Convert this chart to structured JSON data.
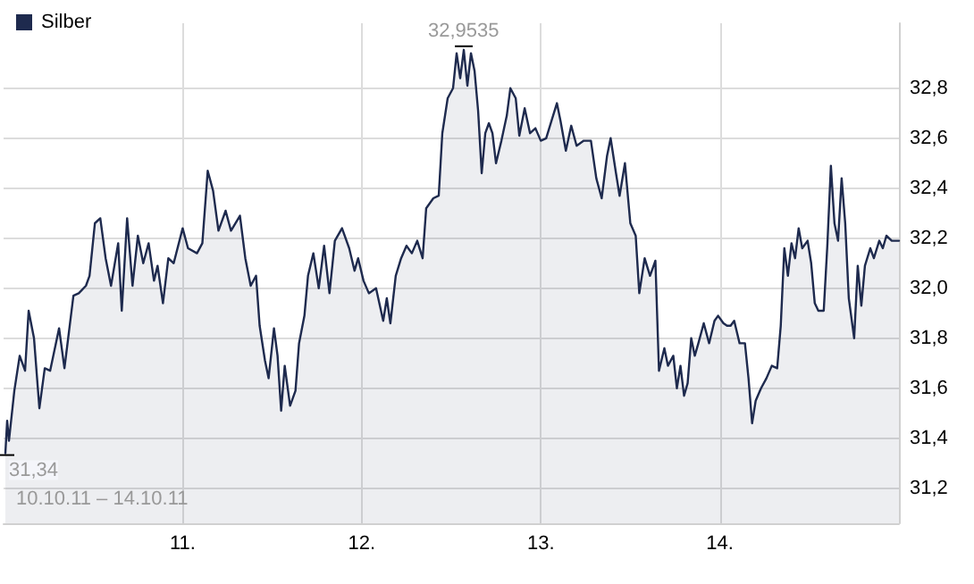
{
  "chart_data": {
    "type": "area",
    "legend": "top left",
    "grid": true,
    "marker": "none",
    "line_style": "solid",
    "xlim": [
      10,
      15
    ],
    "ylim": [
      31.06,
      33.06
    ],
    "xticks": [
      {
        "value": 11,
        "label": "11."
      },
      {
        "value": 12,
        "label": "12."
      },
      {
        "value": 13,
        "label": "13."
      },
      {
        "value": 14,
        "label": "14."
      }
    ],
    "yticks": [
      {
        "value": 31.2,
        "label": "31,2"
      },
      {
        "value": 31.4,
        "label": "31,4"
      },
      {
        "value": 31.6,
        "label": "31,6"
      },
      {
        "value": 31.8,
        "label": "31,8"
      },
      {
        "value": 32.0,
        "label": "32,0"
      },
      {
        "value": 32.2,
        "label": "32,2"
      },
      {
        "value": 32.4,
        "label": "32,4"
      },
      {
        "value": 32.6,
        "label": "32,6"
      },
      {
        "value": 32.8,
        "label": "32,8"
      }
    ],
    "annotations": [
      {
        "text": "32,9535",
        "x": 12.57,
        "y": 32.9535
      },
      {
        "text": "31,34",
        "x": 10.01,
        "y": 31.34
      },
      "10.10.11 – 14.10.11"
    ],
    "series": [
      {
        "name": "Silber",
        "color": "#1e2a4e",
        "x": [
          10.01,
          10.02,
          10.03,
          10.06,
          10.09,
          10.12,
          10.14,
          10.17,
          10.2,
          10.23,
          10.26,
          10.31,
          10.34,
          10.39,
          10.42,
          10.46,
          10.48,
          10.51,
          10.54,
          10.57,
          10.6,
          10.64,
          10.66,
          10.69,
          10.72,
          10.75,
          10.78,
          10.81,
          10.84,
          10.86,
          10.89,
          10.92,
          10.95,
          11.0,
          11.03,
          11.08,
          11.11,
          11.14,
          11.17,
          11.2,
          11.24,
          11.27,
          11.32,
          11.35,
          11.38,
          11.41,
          11.43,
          11.46,
          11.48,
          11.51,
          11.53,
          11.55,
          11.57,
          11.6,
          11.63,
          11.65,
          11.68,
          11.7,
          11.73,
          11.76,
          11.79,
          11.82,
          11.85,
          11.89,
          11.93,
          11.96,
          11.98,
          12.01,
          12.04,
          12.08,
          12.12,
          12.14,
          12.16,
          12.19,
          12.22,
          12.25,
          12.28,
          12.31,
          12.34,
          12.36,
          12.4,
          12.43,
          12.45,
          12.48,
          12.51,
          12.53,
          12.55,
          12.57,
          12.59,
          12.61,
          12.63,
          12.65,
          12.67,
          12.69,
          12.71,
          12.73,
          12.75,
          12.78,
          12.81,
          12.83,
          12.86,
          12.88,
          12.91,
          12.94,
          12.97,
          13.0,
          13.03,
          13.06,
          13.09,
          13.11,
          13.14,
          13.17,
          13.2,
          13.24,
          13.28,
          13.31,
          13.34,
          13.37,
          13.39,
          13.42,
          13.44,
          13.47,
          13.5,
          13.53,
          13.55,
          13.58,
          13.61,
          13.64,
          13.66,
          13.69,
          13.71,
          13.74,
          13.76,
          13.78,
          13.8,
          13.82,
          13.84,
          13.86,
          13.88,
          13.91,
          13.94,
          13.97,
          13.99,
          14.02,
          14.04,
          14.06,
          14.08,
          14.11,
          14.14,
          14.16,
          14.18,
          14.2,
          14.23,
          14.26,
          14.29,
          14.32,
          14.34,
          14.36,
          14.38,
          14.4,
          14.42,
          14.44,
          14.46,
          14.49,
          14.51,
          14.53,
          14.55,
          14.58,
          14.6,
          14.62,
          14.64,
          14.66,
          14.68,
          14.7,
          14.72,
          14.75,
          14.77,
          14.79,
          14.81,
          14.84,
          14.86,
          14.89,
          14.91,
          14.93,
          14.96,
          15.0
        ],
        "values": [
          31.34,
          31.47,
          31.39,
          31.59,
          31.73,
          31.67,
          31.91,
          31.8,
          31.52,
          31.68,
          31.67,
          31.84,
          31.68,
          31.97,
          31.98,
          32.01,
          32.05,
          32.26,
          32.28,
          32.12,
          32.01,
          32.18,
          31.91,
          32.28,
          32.01,
          32.21,
          32.1,
          32.18,
          32.03,
          32.09,
          31.94,
          32.12,
          32.1,
          32.24,
          32.16,
          32.14,
          32.18,
          32.47,
          32.39,
          32.23,
          32.31,
          32.23,
          32.29,
          32.12,
          32.01,
          32.05,
          31.85,
          31.71,
          31.64,
          31.84,
          31.73,
          31.51,
          31.69,
          31.53,
          31.59,
          31.78,
          31.89,
          32.05,
          32.14,
          32.0,
          32.17,
          31.98,
          32.19,
          32.24,
          32.16,
          32.07,
          32.12,
          32.03,
          31.98,
          32.0,
          31.87,
          31.96,
          31.86,
          32.05,
          32.12,
          32.17,
          32.14,
          32.19,
          32.12,
          32.32,
          32.36,
          32.37,
          32.62,
          32.76,
          32.8,
          32.94,
          32.84,
          32.9535,
          32.81,
          32.94,
          32.87,
          32.71,
          32.46,
          32.62,
          32.66,
          32.62,
          32.5,
          32.59,
          32.69,
          32.8,
          32.76,
          32.61,
          32.72,
          32.62,
          32.64,
          32.59,
          32.6,
          32.67,
          32.74,
          32.67,
          32.55,
          32.65,
          32.57,
          32.59,
          32.59,
          32.44,
          32.36,
          32.53,
          32.6,
          32.46,
          32.37,
          32.5,
          32.26,
          32.21,
          31.98,
          32.12,
          32.05,
          32.11,
          31.67,
          31.76,
          31.69,
          31.73,
          31.6,
          31.69,
          31.57,
          31.62,
          31.8,
          31.73,
          31.78,
          31.86,
          31.78,
          31.87,
          31.89,
          31.86,
          31.85,
          31.85,
          31.87,
          31.78,
          31.78,
          31.64,
          31.46,
          31.55,
          31.6,
          31.64,
          31.69,
          31.68,
          31.85,
          32.16,
          32.05,
          32.18,
          32.12,
          32.24,
          32.16,
          32.19,
          32.1,
          31.94,
          31.91,
          31.91,
          32.17,
          32.49,
          32.26,
          32.19,
          32.44,
          32.26,
          31.96,
          31.8,
          32.09,
          31.93,
          32.09,
          32.16,
          32.12,
          32.19,
          32.16,
          32.21,
          32.19,
          32.19
        ]
      }
    ]
  }
}
